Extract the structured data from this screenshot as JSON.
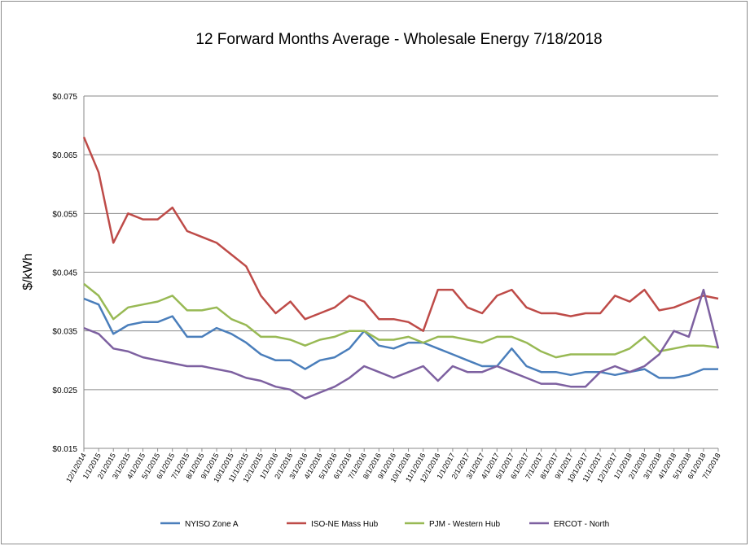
{
  "chart_data": {
    "type": "line",
    "title": "12 Forward Months Average - Wholesale Energy 7/18/2018",
    "xlabel": "",
    "ylabel": "$/kWh",
    "ylim": [
      0.015,
      0.075
    ],
    "y_ticks": [
      "$0.015",
      "$0.025",
      "$0.035",
      "$0.045",
      "$0.055",
      "$0.065",
      "$0.075"
    ],
    "y_tick_values": [
      0.015,
      0.025,
      0.035,
      0.045,
      0.055,
      0.065,
      0.075
    ],
    "x_ticks": [
      "12/1/2014",
      "1/1/2015",
      "2/1/2015",
      "3/1/2015",
      "4/1/2015",
      "5/1/2015",
      "6/1/2015",
      "7/1/2015",
      "8/1/2015",
      "9/1/2015",
      "10/1/2015",
      "11/1/2015",
      "12/1/2015",
      "1/1/2016",
      "2/1/2016",
      "3/1/2016",
      "4/1/2016",
      "5/1/2016",
      "6/1/2016",
      "7/1/2016",
      "8/1/2016",
      "9/1/2016",
      "10/1/2016",
      "11/1/2016",
      "12/1/2016",
      "1/1/2017",
      "2/1/2017",
      "3/1/2017",
      "4/1/2017",
      "5/1/2017",
      "6/1/2017",
      "7/1/2017",
      "8/1/2017",
      "9/1/2017",
      "10/1/2017",
      "11/1/2017",
      "12/1/2017",
      "1/1/2018",
      "2/1/2018",
      "3/1/2018",
      "4/1/2018",
      "5/1/2018",
      "6/1/2018",
      "7/1/2018"
    ],
    "grid": true,
    "legend_position": "bottom",
    "series": [
      {
        "name": "NYISO Zone A",
        "color": "#4a7ebb",
        "values": [
          0.0405,
          0.0395,
          0.0345,
          0.036,
          0.0365,
          0.0365,
          0.0375,
          0.034,
          0.034,
          0.0355,
          0.0345,
          0.033,
          0.031,
          0.03,
          0.03,
          0.0285,
          0.03,
          0.0305,
          0.032,
          0.035,
          0.0325,
          0.032,
          0.033,
          0.033,
          0.032,
          0.031,
          0.03,
          0.029,
          0.029,
          0.032,
          0.029,
          0.028,
          0.028,
          0.0275,
          0.028,
          0.028,
          0.0275,
          0.028,
          0.0285,
          0.027,
          0.027,
          0.0275,
          0.0285,
          0.0285
        ]
      },
      {
        "name": "ISO-NE Mass Hub",
        "color": "#be4b48",
        "values": [
          0.068,
          0.062,
          0.05,
          0.055,
          0.054,
          0.054,
          0.056,
          0.052,
          0.051,
          0.05,
          0.048,
          0.046,
          0.041,
          0.038,
          0.04,
          0.037,
          0.038,
          0.039,
          0.041,
          0.04,
          0.037,
          0.037,
          0.0365,
          0.035,
          0.042,
          0.042,
          0.039,
          0.038,
          0.041,
          0.042,
          0.039,
          0.038,
          0.038,
          0.0375,
          0.038,
          0.038,
          0.041,
          0.04,
          0.042,
          0.0385,
          0.039,
          0.04,
          0.041,
          0.0405
        ]
      },
      {
        "name": "PJM - Western Hub",
        "color": "#98b954",
        "values": [
          0.043,
          0.041,
          0.037,
          0.039,
          0.0395,
          0.04,
          0.041,
          0.0385,
          0.0385,
          0.039,
          0.037,
          0.036,
          0.034,
          0.034,
          0.0335,
          0.0325,
          0.0335,
          0.034,
          0.035,
          0.035,
          0.0335,
          0.0335,
          0.034,
          0.033,
          0.034,
          0.034,
          0.0335,
          0.033,
          0.034,
          0.034,
          0.033,
          0.0315,
          0.0305,
          0.031,
          0.031,
          0.031,
          0.031,
          0.032,
          0.034,
          0.0315,
          0.032,
          0.0325,
          0.0325,
          0.0322
        ]
      },
      {
        "name": "ERCOT - North",
        "color": "#7d60a0",
        "values": [
          0.0355,
          0.0345,
          0.032,
          0.0315,
          0.0305,
          0.03,
          0.0295,
          0.029,
          0.029,
          0.0285,
          0.028,
          0.027,
          0.0265,
          0.0255,
          0.025,
          0.0235,
          0.0245,
          0.0255,
          0.027,
          0.029,
          0.028,
          0.027,
          0.028,
          0.029,
          0.0265,
          0.029,
          0.028,
          0.028,
          0.029,
          0.028,
          0.027,
          0.026,
          0.026,
          0.0255,
          0.0255,
          0.028,
          0.029,
          0.028,
          0.029,
          0.031,
          0.035,
          0.034,
          0.042,
          0.032
        ]
      }
    ]
  }
}
